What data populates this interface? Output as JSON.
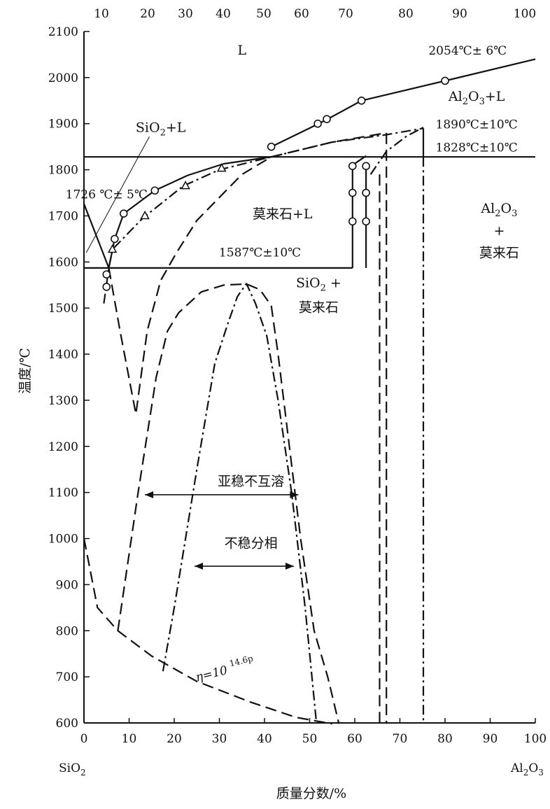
{
  "chart_data": {
    "type": "phase-diagram",
    "title": "",
    "xlabel": "质量分数/%",
    "ylabel": "温度/℃",
    "x_end_labels": {
      "left": "SiO2",
      "right": "Al2O3"
    },
    "xlim": [
      0,
      100
    ],
    "ylim": [
      600,
      2100
    ],
    "x_ticks_bottom": [
      "0",
      "10",
      "20",
      "30",
      "40",
      "50",
      "60",
      "70",
      "80",
      "90",
      "100"
    ],
    "x_ticks_top": [
      "10",
      "20",
      "30",
      "40",
      "50",
      "60",
      "70",
      "80",
      "90",
      "100"
    ],
    "y_ticks": [
      "600",
      "700",
      "800",
      "900",
      "1000",
      "1100",
      "1200",
      "1300",
      "1400",
      "1500",
      "1600",
      "1700",
      "1800",
      "1900",
      "2000",
      "2100"
    ],
    "region_labels": [
      {
        "text": "L",
        "x": 35,
        "y": 2050
      },
      {
        "text": "Al2O3+L",
        "x": 87,
        "y": 1950
      },
      {
        "text": "SiO2+L",
        "x": 17,
        "y": 1882
      },
      {
        "text": "莫来石+L",
        "x": 44,
        "y": 1695
      },
      {
        "text": "Al2O3",
        "x": 92,
        "y": 1707
      },
      {
        "text": "+",
        "x": 92,
        "y": 1658
      },
      {
        "text": "莫来石",
        "x": 92,
        "y": 1610
      },
      {
        "text": "SiO2 +",
        "x": 52,
        "y": 1545
      },
      {
        "text": "莫来石",
        "x": 52,
        "y": 1492
      },
      {
        "text": "亚稳不互溶",
        "x": 37,
        "y": 1115
      },
      {
        "text": "不稳分相",
        "x": 37,
        "y": 980
      }
    ],
    "temperature_annotations": [
      {
        "text": "2054℃± 6℃",
        "x": 85,
        "y": 2050
      },
      {
        "text": "1890℃±10℃",
        "x": 87,
        "y": 1890
      },
      {
        "text": "1828℃±10℃",
        "x": 87,
        "y": 1840
      },
      {
        "text": "1726 ℃± 5℃",
        "x": 5,
        "y": 1738
      },
      {
        "text": "1587℃±10℃",
        "x": 39,
        "y": 1612
      }
    ],
    "viscosity_label": {
      "text": "η=10",
      "superscript": "14.6p",
      "x": 25,
      "y": 690
    },
    "series": [
      {
        "style": "solid",
        "points": [
          [
            0,
            1726
          ],
          [
            5.5,
            1587
          ]
        ]
      },
      {
        "style": "solid",
        "points": [
          [
            5.5,
            1587
          ],
          [
            6.8,
            1650
          ],
          [
            8.8,
            1705
          ],
          [
            15.7,
            1755
          ],
          [
            23,
            1788
          ],
          [
            31,
            1813
          ],
          [
            41.5,
            1828
          ]
        ]
      },
      {
        "style": "solid",
        "points": [
          [
            41.5,
            1850
          ],
          [
            52,
            1900
          ],
          [
            54,
            1910
          ],
          [
            61.5,
            1950
          ],
          [
            80,
            1993
          ],
          [
            100,
            2040
          ]
        ]
      },
      {
        "style": "solid",
        "points": [
          [
            0,
            1828
          ],
          [
            100,
            1828
          ]
        ]
      },
      {
        "style": "solid",
        "points": [
          [
            0,
            1587
          ],
          [
            59.5,
            1587
          ]
        ]
      },
      {
        "style": "solid",
        "points": [
          [
            59.5,
            1587
          ],
          [
            59.5,
            1810
          ]
        ]
      },
      {
        "style": "solid",
        "points": [
          [
            62.5,
            1587
          ],
          [
            62.5,
            1810
          ]
        ]
      },
      {
        "style": "solid",
        "points": [
          [
            75.2,
            1828
          ],
          [
            75.2,
            1890
          ]
        ]
      },
      {
        "style": "solid",
        "points": [
          [
            59.5,
            1810
          ],
          [
            62.5,
            1830
          ]
        ]
      },
      {
        "style": "dash-dot",
        "points": [
          [
            4.4,
            1510
          ],
          [
            5.5,
            1587
          ],
          [
            6.3,
            1627
          ],
          [
            13,
            1695
          ],
          [
            22,
            1765
          ],
          [
            30,
            1800
          ],
          [
            41.5,
            1828
          ]
        ]
      },
      {
        "style": "dash-dot",
        "points": [
          [
            41.5,
            1828
          ],
          [
            55,
            1860
          ],
          [
            67,
            1876
          ],
          [
            75.2,
            1890
          ]
        ]
      },
      {
        "style": "dash-dot",
        "points": [
          [
            63.5,
            1790
          ],
          [
            67,
            1840
          ],
          [
            71.5,
            1873
          ],
          [
            75.2,
            1892
          ]
        ]
      },
      {
        "style": "dash-dot",
        "points": [
          [
            75.2,
            1828
          ],
          [
            75.2,
            598
          ]
        ]
      },
      {
        "style": "dash-dot",
        "points": [
          [
            17.5,
            712
          ],
          [
            20,
            850
          ],
          [
            25,
            1150
          ],
          [
            29,
            1380
          ],
          [
            32,
            1470
          ],
          [
            34,
            1525
          ],
          [
            36,
            1553
          ],
          [
            38,
            1510
          ],
          [
            40.5,
            1440
          ],
          [
            43,
            1300
          ],
          [
            46,
            1100
          ],
          [
            49,
            850
          ],
          [
            51.5,
            600
          ]
        ]
      },
      {
        "style": "dashed",
        "points": [
          [
            5.5,
            1587
          ],
          [
            8,
            1450
          ],
          [
            11.5,
            1270
          ],
          [
            14,
            1450
          ],
          [
            17,
            1560
          ],
          [
            20.5,
            1620
          ],
          [
            25,
            1690
          ],
          [
            30,
            1740
          ],
          [
            35,
            1790
          ],
          [
            41.5,
            1828
          ]
        ]
      },
      {
        "style": "dashed",
        "points": [
          [
            41.5,
            1828
          ],
          [
            55,
            1860
          ],
          [
            67,
            1880
          ]
        ]
      },
      {
        "style": "dashed",
        "points": [
          [
            67,
            1880
          ],
          [
            67,
            598
          ]
        ]
      },
      {
        "style": "dashed",
        "points": [
          [
            65.5,
            1790
          ],
          [
            65.5,
            598
          ]
        ]
      },
      {
        "style": "dashed",
        "points": [
          [
            7.5,
            800
          ],
          [
            12,
            1100
          ],
          [
            16,
            1350
          ],
          [
            18.5,
            1450
          ],
          [
            21,
            1490
          ],
          [
            26,
            1535
          ],
          [
            31,
            1550
          ],
          [
            36,
            1552
          ],
          [
            39,
            1540
          ],
          [
            41.5,
            1505
          ],
          [
            43,
            1400
          ],
          [
            45,
            1240
          ],
          [
            48,
            1000
          ],
          [
            51,
            800
          ],
          [
            54,
            700
          ],
          [
            56.5,
            598
          ]
        ]
      },
      {
        "style": "dashed",
        "points": [
          [
            0,
            1000
          ],
          [
            1,
            950
          ],
          [
            3,
            850
          ],
          [
            7.5,
            800
          ],
          [
            15,
            745
          ],
          [
            25,
            690
          ],
          [
            37,
            645
          ],
          [
            47,
            612
          ],
          [
            55,
            598
          ]
        ]
      }
    ],
    "circle_markers": [
      [
        5,
        1546
      ],
      [
        5,
        1573
      ],
      [
        6.8,
        1650
      ],
      [
        8.8,
        1705
      ],
      [
        15.7,
        1755
      ],
      [
        41.5,
        1850
      ],
      [
        51.8,
        1900
      ],
      [
        53.8,
        1910
      ],
      [
        61.5,
        1950
      ],
      [
        80,
        1993
      ],
      [
        59.5,
        1688
      ],
      [
        59.5,
        1750
      ],
      [
        59.5,
        1808
      ],
      [
        62.5,
        1688
      ],
      [
        62.5,
        1750
      ],
      [
        62.5,
        1808
      ]
    ],
    "triangle_markers": [
      [
        6.3,
        1627
      ],
      [
        13.5,
        1700
      ],
      [
        22.5,
        1765
      ],
      [
        30.5,
        1803
      ]
    ],
    "double_arrows": [
      {
        "x1": 13.5,
        "x2": 47.5,
        "y": 1095
      },
      {
        "x1": 24.5,
        "x2": 46.5,
        "y": 940
      }
    ],
    "grid": false,
    "legend": "none"
  }
}
